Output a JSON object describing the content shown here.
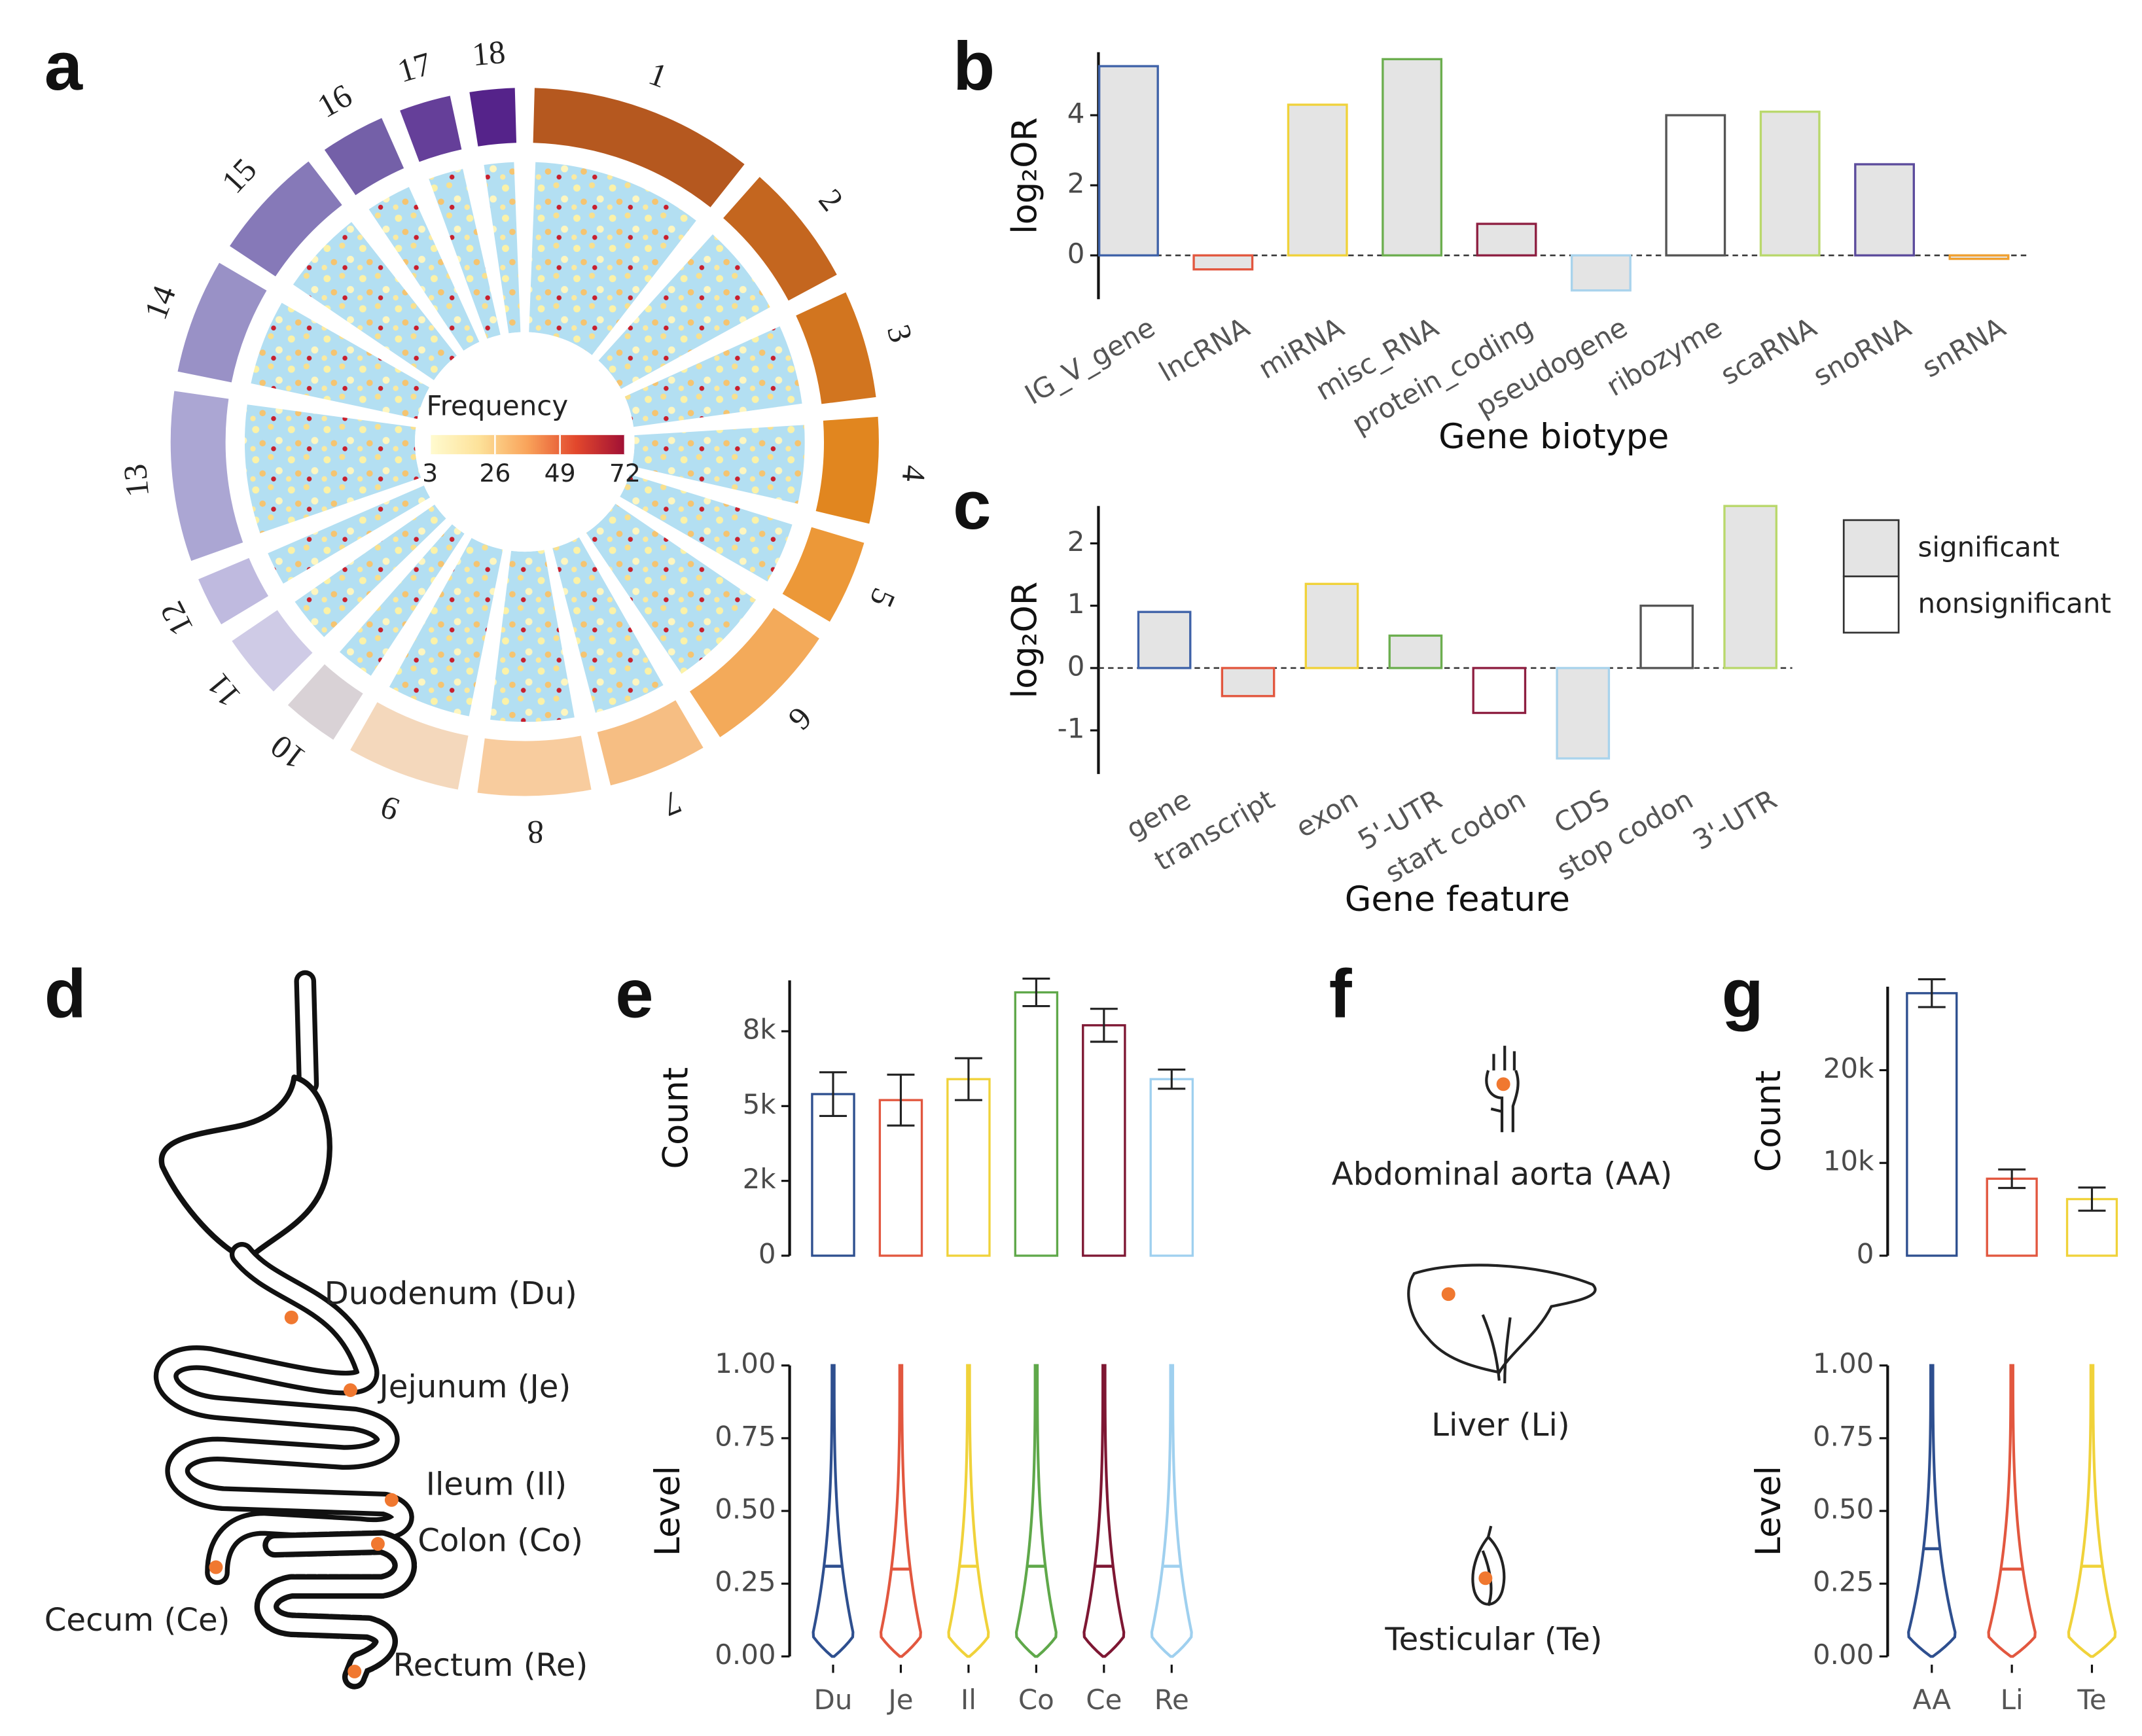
{
  "panel_labels": [
    "a",
    "b",
    "c",
    "d",
    "e",
    "f",
    "g"
  ],
  "chart_data": [
    {
      "type": "circos",
      "categories": [
        "1",
        "2",
        "3",
        "4",
        "5",
        "6",
        "7",
        "8",
        "9",
        "10",
        "11",
        "12",
        "13",
        "14",
        "15",
        "16",
        "17",
        "18"
      ],
      "values": [
        274,
        151,
        132,
        130,
        104,
        170,
        121,
        138,
        139,
        69,
        79,
        61,
        208,
        141,
        140,
        79,
        63,
        55
      ],
      "colors": [
        "#b5581f",
        "#c4661f",
        "#d2751f",
        "#e1861f",
        "#ec9838",
        "#f3aa5a",
        "#f6be83",
        "#f8cc9e",
        "#f4d8bc",
        "#d9d2d6",
        "#cfcbe6",
        "#bfbadf",
        "#aba6d3",
        "#9991c6",
        "#8679b8",
        "#7460a8",
        "#653f99",
        "#55238a"
      ],
      "legend_title": "Frequency",
      "colorbar_lim": [
        3,
        72
      ],
      "colorbar_ticks": [
        3,
        26,
        49,
        72
      ],
      "colorbar_colors": [
        "#fffbd0",
        "#fde29a",
        "#f9a35a",
        "#e2472c",
        "#a01035"
      ]
    },
    {
      "type": "bar",
      "y_label": "log₂OR",
      "x_label": "Gene biotype",
      "categories": [
        "IG_V_gene",
        "lncRNA",
        "miRNA",
        "misc_RNA",
        "protein_coding",
        "pseudogene",
        "ribozyme",
        "scaRNA",
        "snoRNA",
        "snRNA"
      ],
      "values": [
        5.4,
        -0.4,
        4.3,
        5.6,
        0.9,
        -1.0,
        4.0,
        4.1,
        2.6,
        -0.1
      ],
      "colors": [
        "#3f62a8",
        "#e2573f",
        "#f0d23a",
        "#6cae4f",
        "#8e1f41",
        "#a9d3ec",
        "#555555",
        "#b9d86c",
        "#5b4b9c",
        "#f0a030"
      ],
      "significant": [
        true,
        true,
        true,
        true,
        true,
        true,
        false,
        true,
        true,
        true
      ],
      "ylim": [
        -1.25,
        5.8
      ],
      "yticks": [
        0,
        2,
        4
      ],
      "reference_line": 0
    },
    {
      "type": "bar",
      "y_label": "log₂OR",
      "x_label": "Gene feature",
      "categories": [
        "gene",
        "transcript",
        "exon",
        "5'-UTR",
        "start codon",
        "CDS",
        "stop codon",
        "3'-UTR"
      ],
      "values": [
        0.9,
        -0.45,
        1.35,
        0.52,
        -0.72,
        -1.45,
        1.0,
        2.6
      ],
      "colors": [
        "#3f62a8",
        "#e2573f",
        "#f0d23a",
        "#6cae4f",
        "#8e1f41",
        "#a9d3ec",
        "#555555",
        "#b9d86c"
      ],
      "significant": [
        true,
        true,
        true,
        true,
        false,
        true,
        false,
        true
      ],
      "ylim": [
        -1.7,
        2.6
      ],
      "yticks": [
        -1,
        0,
        1,
        2
      ],
      "reference_line": 0,
      "legend": [
        "significant",
        "nonsignificant"
      ]
    },
    {
      "type": "bar",
      "y_label": "Count",
      "values": [
        5400,
        5200,
        5900,
        8800,
        7700,
        5900
      ],
      "errors": [
        730,
        850,
        700,
        460,
        550,
        320
      ],
      "colors": [
        "#2e4f8f",
        "#e2573f",
        "#f0d23a",
        "#5fa84a",
        "#7e1733",
        "#9fd0ef"
      ],
      "ylim": [
        0,
        9200
      ],
      "yticks": [
        0,
        {
          "value": 2500,
          "label": "2k"
        },
        {
          "value": 5000,
          "label": "5k"
        },
        {
          "value": 7500,
          "label": "8k"
        }
      ]
    },
    {
      "type": "violin",
      "y_label": "Level",
      "categories": [
        "Du",
        "Je",
        "Il",
        "Co",
        "Ce",
        "Re"
      ],
      "values": [
        0.31,
        0.3,
        0.31,
        0.31,
        0.31,
        0.31
      ],
      "colors": [
        "#2e4f8f",
        "#e2573f",
        "#f0d23a",
        "#5fa84a",
        "#7e1733",
        "#9fd0ef"
      ],
      "ylim": [
        0,
        1
      ],
      "yticks": [
        {
          "value": 0,
          "label": "0.00"
        },
        0.25,
        {
          "value": 0.5,
          "label": "0.50"
        },
        0.75,
        {
          "value": 1,
          "label": "1.00"
        }
      ]
    },
    {
      "type": "bar",
      "y_label": "Count",
      "values": [
        28300,
        8300,
        6100
      ],
      "errors": [
        1500,
        1000,
        1250
      ],
      "colors": [
        "#2e4f8f",
        "#e2573f",
        "#f0d23a"
      ],
      "ylim": [
        0,
        29000
      ],
      "yticks": [
        0,
        {
          "value": 10000,
          "label": "10k"
        },
        {
          "value": 20000,
          "label": "20k"
        }
      ]
    },
    {
      "type": "violin",
      "y_label": "Level",
      "categories": [
        "AA",
        "Li",
        "Te"
      ],
      "values": [
        0.37,
        0.3,
        0.31
      ],
      "colors": [
        "#2e4f8f",
        "#e2573f",
        "#f0d23a"
      ],
      "ylim": [
        0,
        1
      ],
      "yticks": [
        {
          "value": 0,
          "label": "0.00"
        },
        0.25,
        {
          "value": 0.5,
          "label": "0.50"
        },
        0.75,
        {
          "value": 1,
          "label": "1.00"
        }
      ]
    }
  ],
  "diagrams": {
    "gut": {
      "labels": [
        "Duodenum (Du)",
        "Jejunum (Je)",
        "Ileum (Il)",
        "Colon (Co)",
        "Cecum (Ce)",
        "Rectum (Re)"
      ]
    },
    "organs": {
      "labels": [
        "Abdominal aorta (AA)",
        "Liver (Li)",
        "Testicular (Te)"
      ]
    }
  }
}
